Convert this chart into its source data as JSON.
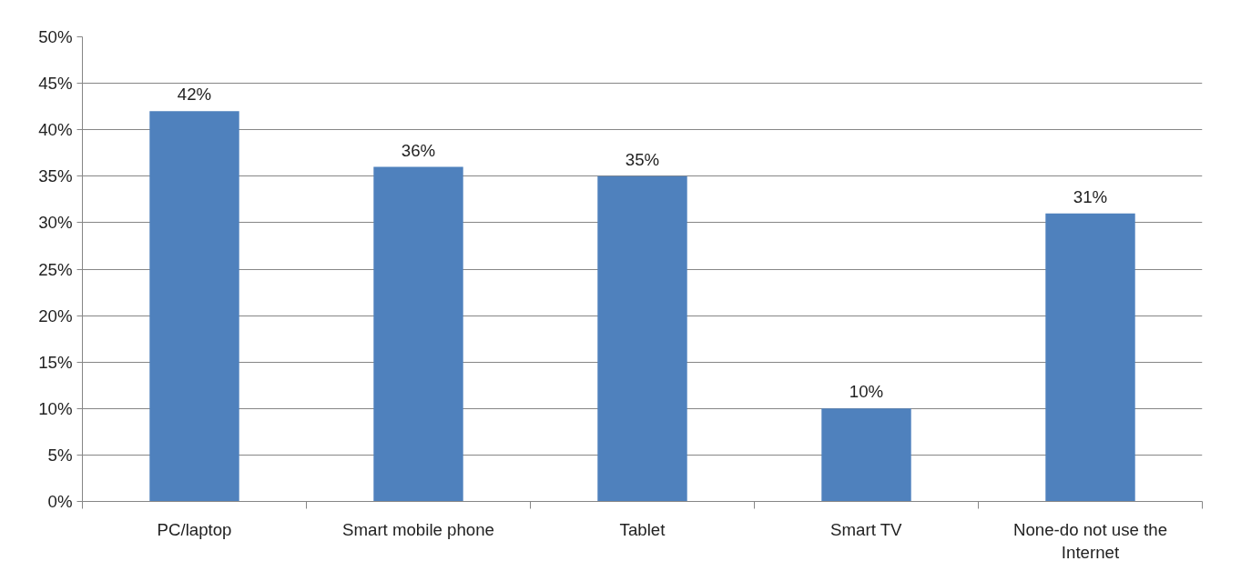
{
  "chart_data": {
    "type": "bar",
    "categories": [
      "PC/laptop",
      "Smart mobile phone",
      "Tablet",
      "Smart TV",
      "None-do not use the Internet"
    ],
    "values": [
      42,
      36,
      35,
      10,
      31
    ],
    "color": "#4f81bd",
    "value_labels": [
      "42%",
      "36%",
      "35%",
      "10%",
      "31%"
    ],
    "ylim": [
      0,
      50
    ],
    "yticks": [
      {
        "value": 0,
        "label": "0%"
      },
      {
        "value": 5,
        "label": "5%"
      },
      {
        "value": 10,
        "label": "10%"
      },
      {
        "value": 15,
        "label": "15%"
      },
      {
        "value": 20,
        "label": "20%"
      },
      {
        "value": 25,
        "label": "25%"
      },
      {
        "value": 30,
        "label": "30%"
      },
      {
        "value": 35,
        "label": "35%"
      },
      {
        "value": 40,
        "label": "40%"
      },
      {
        "value": 45,
        "label": "45%"
      },
      {
        "value": 50,
        "label": "50%"
      }
    ],
    "grid": "y"
  }
}
